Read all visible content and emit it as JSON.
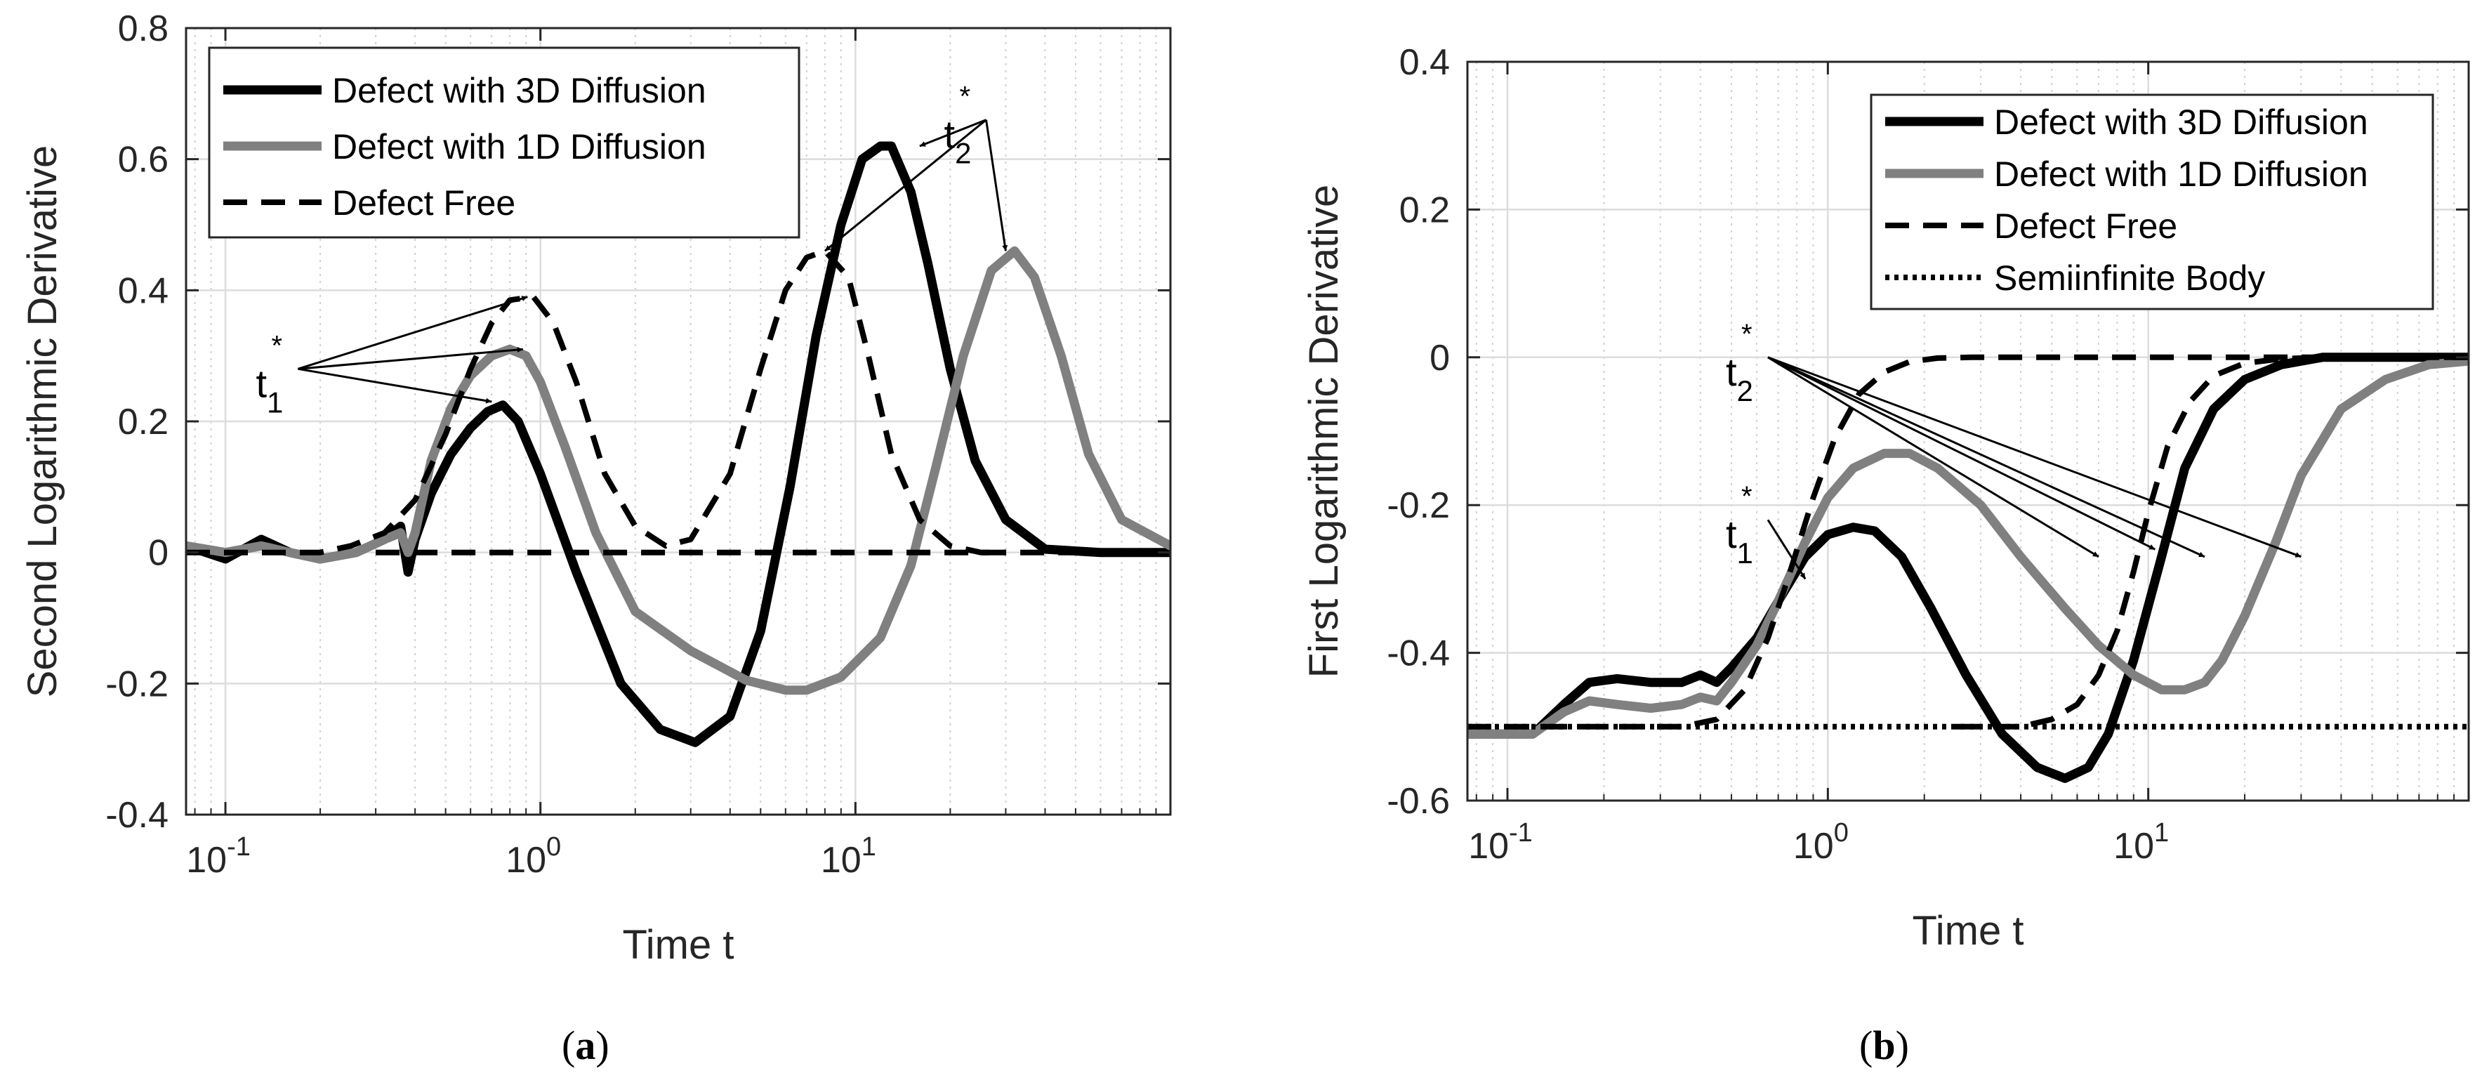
{
  "chart_data": [
    {
      "panel_label": "a",
      "type": "line",
      "xscale": "log",
      "xlim": [
        0.075,
        100
      ],
      "ylim": [
        -0.4,
        0.8
      ],
      "xlabel": "Time t",
      "ylabel": "Second Logarithmic Derivative",
      "grid": true,
      "legend_position": "top-left",
      "x_ticks": [
        {
          "value": 0.1,
          "base": "10",
          "exp": "-1"
        },
        {
          "value": 1,
          "base": "10",
          "exp": "0"
        },
        {
          "value": 10,
          "base": "10",
          "exp": "1"
        }
      ],
      "y_ticks": [
        {
          "value": -0.4,
          "label": "-0.4"
        },
        {
          "value": -0.2,
          "label": "-0.2"
        },
        {
          "value": 0,
          "label": "0"
        },
        {
          "value": 0.2,
          "label": "0.2"
        },
        {
          "value": 0.4,
          "label": "0.4"
        },
        {
          "value": 0.6,
          "label": "0.6"
        },
        {
          "value": 0.8,
          "label": "0.8"
        }
      ],
      "series": [
        {
          "name": "Defect with 3D Diffusion",
          "color": "#000000",
          "dash": "solid",
          "width": 13,
          "x": [
            0.075,
            0.1,
            0.13,
            0.16,
            0.2,
            0.26,
            0.32,
            0.36,
            0.38,
            0.4,
            0.45,
            0.52,
            0.6,
            0.68,
            0.76,
            0.85,
            1.0,
            1.3,
            1.8,
            2.4,
            3.1,
            4.0,
            5.0,
            6.2,
            7.5,
            9.0,
            10.5,
            12.0,
            13.0,
            15.0,
            17.0,
            20.0,
            24.0,
            30.0,
            40.0,
            60.0,
            100
          ],
          "y": [
            0.01,
            -0.01,
            0.02,
            0.0,
            -0.01,
            0.0,
            0.02,
            0.04,
            -0.03,
            0.02,
            0.09,
            0.15,
            0.19,
            0.215,
            0.225,
            0.2,
            0.12,
            -0.03,
            -0.2,
            -0.27,
            -0.29,
            -0.25,
            -0.12,
            0.1,
            0.33,
            0.5,
            0.6,
            0.62,
            0.62,
            0.55,
            0.44,
            0.28,
            0.14,
            0.05,
            0.005,
            0.0,
            0.0
          ]
        },
        {
          "name": "Defect with 1D Diffusion",
          "color": "#808080",
          "dash": "solid",
          "width": 13,
          "x": [
            0.075,
            0.1,
            0.13,
            0.16,
            0.2,
            0.26,
            0.32,
            0.36,
            0.38,
            0.4,
            0.45,
            0.52,
            0.6,
            0.7,
            0.8,
            0.9,
            1.0,
            1.2,
            1.5,
            2.0,
            3.0,
            4.5,
            6.0,
            7.0,
            9.0,
            12.0,
            15.0,
            18.0,
            22.0,
            27.0,
            32.0,
            37.0,
            45.0,
            55.0,
            70.0,
            100
          ],
          "y": [
            0.01,
            0.0,
            0.01,
            0.0,
            -0.01,
            0.0,
            0.02,
            0.03,
            0.0,
            0.03,
            0.14,
            0.22,
            0.27,
            0.3,
            0.31,
            0.3,
            0.26,
            0.16,
            0.03,
            -0.09,
            -0.15,
            -0.195,
            -0.21,
            -0.21,
            -0.19,
            -0.13,
            -0.02,
            0.13,
            0.3,
            0.43,
            0.46,
            0.42,
            0.3,
            0.15,
            0.05,
            0.01
          ]
        },
        {
          "name": "Defect Free",
          "color": "#000000",
          "dash": "dashed",
          "width": 8,
          "x": [
            0.075,
            0.1,
            0.15,
            0.2,
            0.25,
            0.32,
            0.4,
            0.5,
            0.6,
            0.7,
            0.8,
            0.95,
            1.1,
            1.3,
            1.6,
            2.0,
            2.5,
            3.0,
            4.0,
            5.0,
            6.0,
            7.0,
            8.0,
            9.5,
            11.0,
            13.0,
            16.0,
            20.0,
            25.0,
            30.0
          ],
          "y": [
            0.0,
            0.0,
            0.0,
            0.0,
            0.01,
            0.03,
            0.08,
            0.18,
            0.28,
            0.35,
            0.385,
            0.39,
            0.35,
            0.26,
            0.12,
            0.04,
            0.01,
            0.02,
            0.12,
            0.28,
            0.4,
            0.45,
            0.46,
            0.42,
            0.3,
            0.15,
            0.05,
            0.01,
            0.0,
            0.0
          ]
        },
        {
          "name": "Defect Free (flat)",
          "color": "#000000",
          "dash": "dashed",
          "width": 8,
          "legend": false,
          "x": [
            0.3,
            1,
            10,
            100
          ],
          "y": [
            0.0,
            0.0,
            0.0,
            0.0
          ]
        }
      ],
      "annotations": [
        {
          "label": "t",
          "sub": "1",
          "text_at": [
            0.17,
            0.28
          ],
          "points_to": [
            [
              0.91,
              0.39
            ],
            [
              0.88,
              0.31
            ],
            [
              0.7,
              0.23
            ]
          ]
        },
        {
          "label": "t",
          "sub": "2",
          "text_at": [
            26,
            0.66
          ],
          "points_to": [
            [
              16,
              0.62
            ],
            [
              8.0,
              0.46
            ],
            [
              30,
              0.46
            ]
          ]
        }
      ]
    },
    {
      "panel_label": "b",
      "type": "line",
      "xscale": "log",
      "xlim": [
        0.075,
        100
      ],
      "ylim": [
        -0.6,
        0.4
      ],
      "xlabel": "Time t",
      "ylabel": "First Logarithmic Derivative",
      "grid": true,
      "legend_position": "top-right",
      "x_ticks": [
        {
          "value": 0.1,
          "base": "10",
          "exp": "-1"
        },
        {
          "value": 1,
          "base": "10",
          "exp": "0"
        },
        {
          "value": 10,
          "base": "10",
          "exp": "1"
        }
      ],
      "y_ticks": [
        {
          "value": -0.6,
          "label": "-0.6"
        },
        {
          "value": -0.4,
          "label": "-0.4"
        },
        {
          "value": -0.2,
          "label": "-0.2"
        },
        {
          "value": 0,
          "label": "0"
        },
        {
          "value": 0.2,
          "label": "0.2"
        },
        {
          "value": 0.4,
          "label": "0.4"
        }
      ],
      "series": [
        {
          "name": "Defect with 3D Diffusion",
          "color": "#000000",
          "dash": "solid",
          "width": 13,
          "x": [
            0.075,
            0.1,
            0.12,
            0.15,
            0.18,
            0.22,
            0.28,
            0.35,
            0.4,
            0.45,
            0.5,
            0.6,
            0.7,
            0.85,
            1.0,
            1.2,
            1.4,
            1.7,
            2.1,
            2.7,
            3.5,
            4.5,
            5.5,
            6.5,
            7.5,
            9.0,
            11.0,
            13.0,
            16.0,
            20.0,
            26.0,
            35.0,
            50.0,
            100
          ],
          "y": [
            -0.51,
            -0.51,
            -0.51,
            -0.47,
            -0.44,
            -0.435,
            -0.44,
            -0.44,
            -0.43,
            -0.44,
            -0.42,
            -0.38,
            -0.33,
            -0.27,
            -0.24,
            -0.23,
            -0.235,
            -0.27,
            -0.34,
            -0.43,
            -0.51,
            -0.555,
            -0.57,
            -0.555,
            -0.51,
            -0.41,
            -0.27,
            -0.15,
            -0.07,
            -0.03,
            -0.01,
            0.0,
            0.0,
            0.0
          ]
        },
        {
          "name": "Defect with 1D Diffusion",
          "color": "#808080",
          "dash": "solid",
          "width": 13,
          "x": [
            0.075,
            0.1,
            0.12,
            0.15,
            0.18,
            0.22,
            0.28,
            0.35,
            0.4,
            0.45,
            0.5,
            0.6,
            0.7,
            0.85,
            1.0,
            1.2,
            1.5,
            1.8,
            2.2,
            3.0,
            4.0,
            5.5,
            7.0,
            9.0,
            11.0,
            13.0,
            15.0,
            17.0,
            20.0,
            25.0,
            30.0,
            40.0,
            55.0,
            75.0,
            100
          ],
          "y": [
            -0.51,
            -0.51,
            -0.51,
            -0.48,
            -0.465,
            -0.47,
            -0.475,
            -0.47,
            -0.46,
            -0.465,
            -0.44,
            -0.39,
            -0.33,
            -0.25,
            -0.19,
            -0.15,
            -0.13,
            -0.13,
            -0.15,
            -0.2,
            -0.27,
            -0.34,
            -0.39,
            -0.43,
            -0.45,
            -0.45,
            -0.44,
            -0.41,
            -0.35,
            -0.25,
            -0.16,
            -0.07,
            -0.03,
            -0.01,
            -0.005
          ]
        },
        {
          "name": "Defect Free",
          "color": "#000000",
          "dash": "dashed",
          "width": 8,
          "x": [
            0.075,
            0.2,
            0.35,
            0.45,
            0.55,
            0.65,
            0.75,
            0.9,
            1.05,
            1.25,
            1.5,
            1.8,
            2.2,
            2.8,
            3.5,
            5.0,
            100
          ],
          "y": [
            -0.5,
            -0.5,
            -0.5,
            -0.49,
            -0.45,
            -0.38,
            -0.3,
            -0.19,
            -0.11,
            -0.05,
            -0.02,
            -0.006,
            -0.001,
            0.0,
            0.0,
            0.0,
            0.0
          ]
        },
        {
          "name": "Defect Free (shifted)",
          "color": "#000000",
          "dash": "dashed",
          "width": 8,
          "legend": false,
          "x": [
            2.5,
            4.0,
            5.0,
            6.0,
            7.0,
            8.0,
            9.0,
            10.0,
            11.5,
            13.5,
            16.0,
            20.0,
            26.0,
            35.0,
            100
          ],
          "y": [
            -0.5,
            -0.5,
            -0.49,
            -0.47,
            -0.43,
            -0.37,
            -0.29,
            -0.21,
            -0.12,
            -0.06,
            -0.025,
            -0.008,
            -0.002,
            0.0,
            0.0
          ]
        },
        {
          "name": "Semiinfinite Body",
          "color": "#000000",
          "dash": "dotted",
          "width": 8,
          "x": [
            0.075,
            100
          ],
          "y": [
            -0.5,
            -0.5
          ]
        }
      ],
      "annotations": [
        {
          "label": "t",
          "sub": "1",
          "text_at": [
            0.65,
            -0.22
          ],
          "points_to": [
            [
              0.85,
              -0.3
            ]
          ]
        },
        {
          "label": "t",
          "sub": "2",
          "text_at": [
            0.65,
            0.0
          ],
          "points_to": [
            [
              7.0,
              -0.27
            ],
            [
              10.5,
              -0.26
            ],
            [
              15.0,
              -0.27
            ],
            [
              30.0,
              -0.27
            ]
          ]
        }
      ]
    }
  ],
  "captions": [
    "a",
    "b"
  ]
}
